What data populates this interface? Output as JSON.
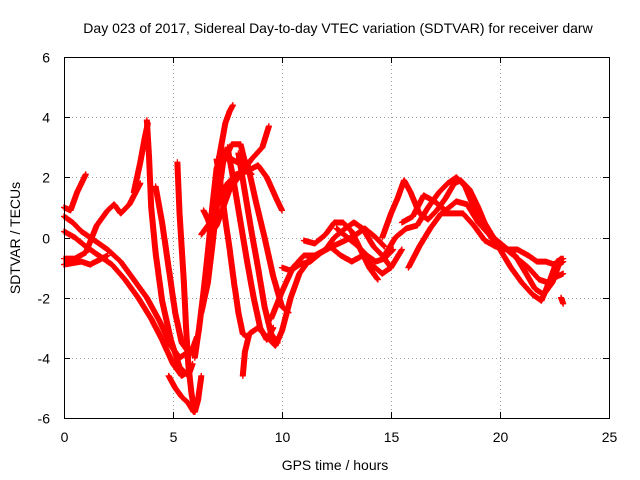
{
  "chart_data": {
    "type": "scatter",
    "title": "Day 023 of 2017, Sidereal Day-to-day VTEC variation (SDTVAR) for receiver darw",
    "xlabel": "GPS time / hours",
    "ylabel": "SDTVAR / TECUs",
    "xlim": [
      0,
      25
    ],
    "ylim": [
      -6,
      6
    ],
    "x_ticks": [
      0,
      5,
      10,
      15,
      20,
      25
    ],
    "y_ticks": [
      -6,
      -4,
      -2,
      0,
      2,
      4,
      6
    ],
    "x_tick_labels": [
      "0",
      "5",
      "10",
      "15",
      "20",
      "25"
    ],
    "y_tick_labels": [
      "-6",
      "-4",
      "-2",
      "0",
      "2",
      "4",
      "6"
    ],
    "grid": true,
    "marker": "+",
    "color": "#ff0000",
    "tracks": [
      [
        [
          0.0,
          1.0
        ],
        [
          0.3,
          0.9
        ],
        [
          0.6,
          1.5
        ],
        [
          1.0,
          2.1
        ]
      ],
      [
        [
          0.0,
          0.7
        ],
        [
          0.4,
          0.5
        ],
        [
          0.8,
          0.2
        ],
        [
          1.4,
          -0.1
        ],
        [
          2.0,
          -0.4
        ],
        [
          2.6,
          -0.8
        ],
        [
          3.2,
          -1.4
        ],
        [
          3.8,
          -2.0
        ],
        [
          4.4,
          -2.8
        ],
        [
          4.9,
          -3.6
        ],
        [
          5.3,
          -4.0
        ],
        [
          5.7,
          -3.8
        ]
      ],
      [
        [
          0.0,
          0.2
        ],
        [
          0.5,
          0.0
        ],
        [
          1.0,
          -0.3
        ],
        [
          1.6,
          -0.6
        ],
        [
          2.2,
          -0.9
        ],
        [
          2.8,
          -1.4
        ],
        [
          3.4,
          -2.0
        ],
        [
          4.0,
          -2.7
        ],
        [
          4.5,
          -3.4
        ],
        [
          5.0,
          -4.2
        ],
        [
          5.4,
          -4.6
        ],
        [
          5.8,
          -4.4
        ]
      ],
      [
        [
          0.0,
          -0.9
        ],
        [
          0.4,
          -0.85
        ],
        [
          0.8,
          -0.8
        ],
        [
          1.2,
          -0.9
        ],
        [
          1.6,
          -0.75
        ],
        [
          2.0,
          -0.6
        ]
      ],
      [
        [
          0.0,
          -0.7
        ],
        [
          0.5,
          -0.7
        ],
        [
          1.0,
          -0.5
        ],
        [
          1.5,
          0.4
        ],
        [
          2.0,
          0.9
        ],
        [
          2.3,
          1.1
        ],
        [
          2.6,
          0.8
        ],
        [
          3.0,
          1.1
        ],
        [
          3.5,
          1.8
        ]
      ],
      [
        [
          3.2,
          1.5
        ],
        [
          3.5,
          2.5
        ],
        [
          3.7,
          3.3
        ],
        [
          3.85,
          3.8
        ]
      ],
      [
        [
          3.8,
          3.9
        ],
        [
          3.9,
          2.7
        ],
        [
          4.0,
          1.0
        ],
        [
          4.2,
          -0.5
        ],
        [
          4.5,
          -2.1
        ],
        [
          4.9,
          -3.4
        ],
        [
          5.3,
          -4.3
        ],
        [
          5.7,
          -4.6
        ],
        [
          5.9,
          -4.2
        ]
      ],
      [
        [
          4.2,
          1.7
        ],
        [
          4.5,
          0.5
        ],
        [
          4.8,
          -1.0
        ],
        [
          5.1,
          -2.5
        ],
        [
          5.4,
          -3.5
        ],
        [
          5.8,
          -3.9
        ],
        [
          6.1,
          -3.3
        ]
      ],
      [
        [
          5.2,
          2.5
        ],
        [
          5.3,
          0.8
        ],
        [
          5.5,
          -1.5
        ],
        [
          5.6,
          -3.0
        ],
        [
          5.7,
          -4.2
        ],
        [
          5.85,
          -5.2
        ],
        [
          6.0,
          -5.8
        ],
        [
          6.15,
          -5.4
        ],
        [
          6.3,
          -4.6
        ]
      ],
      [
        [
          4.8,
          -4.6
        ],
        [
          5.1,
          -5.0
        ],
        [
          5.4,
          -5.3
        ],
        [
          5.7,
          -5.5
        ],
        [
          5.95,
          -5.8
        ]
      ],
      [
        [
          6.0,
          -4.0
        ],
        [
          6.2,
          -3.0
        ],
        [
          6.4,
          -1.8
        ],
        [
          6.6,
          -0.5
        ],
        [
          6.8,
          0.8
        ],
        [
          7.0,
          2.2
        ],
        [
          7.2,
          3.0
        ],
        [
          7.4,
          3.8
        ],
        [
          7.6,
          4.2
        ],
        [
          7.75,
          4.4
        ]
      ],
      [
        [
          6.4,
          -2.0
        ],
        [
          6.6,
          -0.5
        ],
        [
          6.8,
          1.0
        ],
        [
          7.0,
          2.3
        ],
        [
          7.3,
          2.9
        ],
        [
          7.7,
          2.6
        ],
        [
          8.2,
          2.4
        ],
        [
          8.6,
          2.1
        ]
      ],
      [
        [
          6.3,
          0.1
        ],
        [
          6.5,
          0.3
        ],
        [
          6.8,
          0.6
        ],
        [
          7.1,
          1.2
        ],
        [
          7.5,
          1.8
        ],
        [
          7.9,
          2.1
        ],
        [
          8.4,
          2.2
        ],
        [
          8.9,
          2.4
        ],
        [
          9.3,
          2.0
        ],
        [
          9.8,
          1.2
        ],
        [
          10.0,
          0.9
        ]
      ],
      [
        [
          6.4,
          0.9
        ],
        [
          6.6,
          0.6
        ],
        [
          6.8,
          0.2
        ],
        [
          7.0,
          0.4
        ],
        [
          7.3,
          1.0
        ],
        [
          7.6,
          1.6
        ],
        [
          8.0,
          2.0
        ],
        [
          8.6,
          2.6
        ],
        [
          9.1,
          3.0
        ],
        [
          9.4,
          3.7
        ]
      ],
      [
        [
          6.3,
          -2.5
        ],
        [
          6.6,
          -1.5
        ],
        [
          6.8,
          -0.3
        ],
        [
          7.0,
          1.0
        ],
        [
          7.3,
          2.5
        ],
        [
          7.7,
          3.1
        ],
        [
          8.1,
          3.1
        ],
        [
          8.3,
          2.5
        ]
      ],
      [
        [
          7.0,
          2.6
        ],
        [
          7.2,
          1.7
        ],
        [
          7.4,
          0.6
        ],
        [
          7.6,
          -0.4
        ],
        [
          7.8,
          -1.5
        ],
        [
          8.0,
          -2.5
        ],
        [
          8.2,
          -3.2
        ],
        [
          8.4,
          -3.3
        ]
      ],
      [
        [
          7.5,
          3.0
        ],
        [
          7.8,
          1.8
        ],
        [
          8.1,
          0.5
        ],
        [
          8.4,
          -0.8
        ],
        [
          8.7,
          -2.0
        ],
        [
          9.0,
          -3.0
        ],
        [
          9.3,
          -3.4
        ],
        [
          9.6,
          -3.0
        ]
      ],
      [
        [
          8.0,
          2.8
        ],
        [
          8.3,
          1.5
        ],
        [
          8.6,
          0.2
        ],
        [
          8.9,
          -1.0
        ],
        [
          9.2,
          -2.3
        ],
        [
          9.5,
          -3.2
        ],
        [
          9.8,
          -3.5
        ]
      ],
      [
        [
          8.4,
          2.5
        ],
        [
          8.8,
          1.2
        ],
        [
          9.2,
          0.0
        ],
        [
          9.6,
          -1.3
        ],
        [
          10.0,
          -2.3
        ],
        [
          10.3,
          -2.5
        ]
      ],
      [
        [
          8.2,
          -4.6
        ],
        [
          8.3,
          -3.8
        ],
        [
          8.5,
          -3.2
        ],
        [
          8.9,
          -3.0
        ],
        [
          9.3,
          -3.3
        ],
        [
          9.7,
          -3.6
        ],
        [
          10.0,
          -3.1
        ],
        [
          10.4,
          -2.0
        ],
        [
          10.8,
          -1.2
        ],
        [
          11.3,
          -0.7
        ],
        [
          11.8,
          -0.5
        ],
        [
          12.3,
          -0.3
        ],
        [
          12.9,
          -0.1
        ],
        [
          13.4,
          0.1
        ],
        [
          13.8,
          0.3
        ],
        [
          14.3,
          0.0
        ],
        [
          14.7,
          -0.3
        ]
      ],
      [
        [
          9.5,
          -2.7
        ],
        [
          10.0,
          -1.8
        ],
        [
          10.5,
          -1.0
        ],
        [
          11.0,
          -0.6
        ],
        [
          11.5,
          -0.6
        ],
        [
          12.0,
          -0.4
        ],
        [
          12.4,
          0.0
        ],
        [
          12.9,
          0.3
        ],
        [
          13.3,
          0.5
        ],
        [
          13.7,
          0.3
        ],
        [
          14.2,
          -0.3
        ],
        [
          14.6,
          -0.6
        ],
        [
          15.0,
          -1.0
        ]
      ],
      [
        [
          10.0,
          -1.0
        ],
        [
          10.4,
          -1.1
        ],
        [
          10.8,
          -0.9
        ],
        [
          11.3,
          -0.8
        ],
        [
          11.8,
          -0.5
        ],
        [
          12.2,
          -0.3
        ],
        [
          12.7,
          -0.6
        ],
        [
          13.2,
          -0.8
        ],
        [
          13.7,
          -0.6
        ],
        [
          14.1,
          -0.9
        ],
        [
          14.6,
          -1.2
        ],
        [
          15.0,
          -1.0
        ],
        [
          15.5,
          -0.4
        ]
      ],
      [
        [
          11.0,
          -0.1
        ],
        [
          11.5,
          -0.2
        ],
        [
          12.0,
          0.1
        ],
        [
          12.4,
          0.5
        ],
        [
          12.8,
          0.5
        ],
        [
          13.2,
          0.2
        ],
        [
          13.6,
          -0.4
        ],
        [
          14.0,
          -1.0
        ],
        [
          14.4,
          -1.4
        ]
      ],
      [
        [
          12.5,
          0.3
        ],
        [
          13.0,
          0.0
        ],
        [
          13.5,
          -0.3
        ],
        [
          13.9,
          -0.6
        ],
        [
          14.3,
          -0.8
        ],
        [
          14.7,
          -0.7
        ],
        [
          15.1,
          -0.4
        ]
      ],
      [
        [
          14.6,
          0.0
        ],
        [
          15.0,
          0.8
        ],
        [
          15.3,
          1.3
        ],
        [
          15.6,
          1.9
        ],
        [
          15.9,
          1.5
        ],
        [
          16.3,
          0.8
        ],
        [
          16.7,
          0.6
        ],
        [
          17.1,
          0.9
        ],
        [
          17.5,
          1.3
        ],
        [
          17.9,
          1.8
        ],
        [
          18.2,
          1.9
        ],
        [
          18.6,
          1.6
        ],
        [
          19.0,
          1.0
        ],
        [
          19.4,
          0.3
        ],
        [
          19.8,
          -0.1
        ],
        [
          20.3,
          -0.4
        ],
        [
          20.8,
          -0.7
        ],
        [
          21.3,
          -1.0
        ],
        [
          21.8,
          -1.4
        ],
        [
          22.2,
          -1.5
        ],
        [
          22.6,
          -1.3
        ],
        [
          22.9,
          -1.2
        ]
      ],
      [
        [
          14.7,
          -0.6
        ],
        [
          15.2,
          0.0
        ],
        [
          15.7,
          0.3
        ],
        [
          16.2,
          0.4
        ],
        [
          16.7,
          1.0
        ],
        [
          17.2,
          1.5
        ],
        [
          17.6,
          1.8
        ],
        [
          18.0,
          2.0
        ],
        [
          18.4,
          1.7
        ],
        [
          18.8,
          1.0
        ],
        [
          19.2,
          0.6
        ],
        [
          19.7,
          0.0
        ],
        [
          20.2,
          -0.3
        ],
        [
          20.7,
          -0.6
        ],
        [
          21.2,
          -1.2
        ],
        [
          21.6,
          -1.7
        ],
        [
          22.0,
          -1.9
        ],
        [
          22.4,
          -1.5
        ],
        [
          22.7,
          -0.9
        ],
        [
          22.9,
          -0.8
        ]
      ],
      [
        [
          15.5,
          0.5
        ],
        [
          16.0,
          0.7
        ],
        [
          16.5,
          1.4
        ],
        [
          17.0,
          1.2
        ],
        [
          17.5,
          0.9
        ],
        [
          18.0,
          1.2
        ],
        [
          18.5,
          1.1
        ],
        [
          19.0,
          0.5
        ],
        [
          19.5,
          0.1
        ],
        [
          20.0,
          -0.4
        ],
        [
          20.5,
          -1.0
        ],
        [
          21.0,
          -1.5
        ],
        [
          21.5,
          -1.9
        ],
        [
          21.9,
          -2.1
        ],
        [
          22.3,
          -1.4
        ],
        [
          22.6,
          -0.8
        ],
        [
          22.9,
          -0.7
        ]
      ],
      [
        [
          15.8,
          -1.0
        ],
        [
          16.3,
          -0.3
        ],
        [
          16.8,
          0.3
        ],
        [
          17.3,
          0.8
        ],
        [
          17.8,
          0.8
        ],
        [
          18.3,
          0.8
        ],
        [
          18.8,
          0.4
        ],
        [
          19.3,
          -0.1
        ],
        [
          19.8,
          -0.3
        ],
        [
          20.3,
          -0.4
        ],
        [
          20.8,
          -0.4
        ],
        [
          21.3,
          -0.6
        ],
        [
          21.7,
          -0.8
        ],
        [
          22.1,
          -0.8
        ],
        [
          22.5,
          -0.9
        ],
        [
          22.8,
          -0.7
        ]
      ],
      [
        [
          22.8,
          -2.0
        ],
        [
          22.9,
          -2.2
        ]
      ]
    ]
  }
}
